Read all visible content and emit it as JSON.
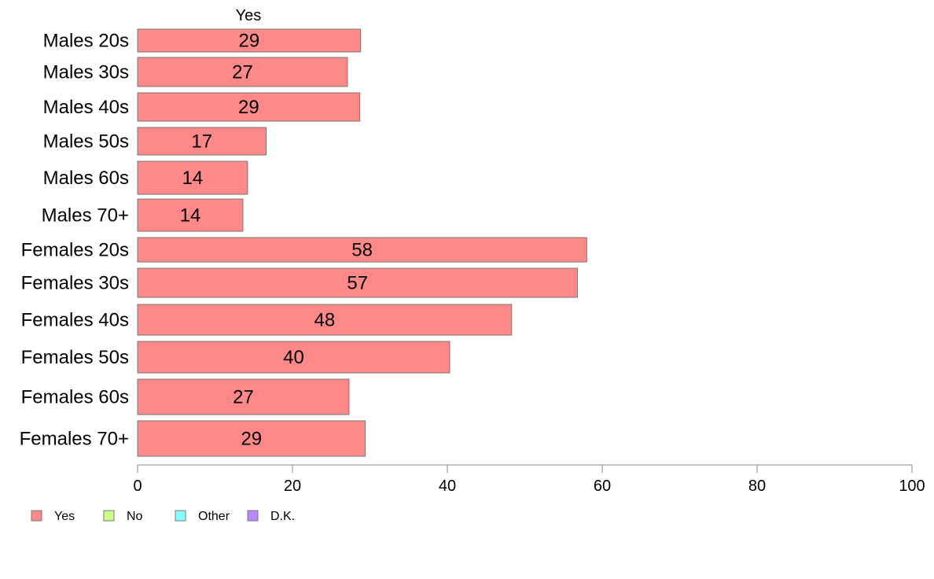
{
  "chart_data": {
    "type": "bar",
    "orientation": "horizontal",
    "column_header": "Yes",
    "categories": [
      "Males 20s",
      "Males 30s",
      "Males 40s",
      "Males 50s",
      "Males 60s",
      "Males 70+",
      "Females 20s",
      "Females 30s",
      "Females 40s",
      "Females 50s",
      "Females 60s",
      "Females 70+"
    ],
    "series": [
      {
        "name": "Yes",
        "color": "#ff8888",
        "values": [
          28.8,
          27.1,
          28.7,
          16.6,
          14.2,
          13.6,
          58.0,
          56.8,
          48.3,
          40.3,
          27.3,
          29.4
        ]
      }
    ],
    "value_labels": [
      "29",
      "27",
      "29",
      "17",
      "14",
      "14",
      "58",
      "57",
      "48",
      "40",
      "27",
      "29"
    ],
    "xlim": [
      0,
      100
    ],
    "xticks": [
      0,
      20,
      40,
      60,
      80,
      100
    ],
    "xtick_labels": [
      "0",
      "20",
      "40",
      "60",
      "80",
      "100"
    ],
    "grid": false,
    "legend": {
      "placement": "bottom-left",
      "items": [
        {
          "label": "Yes",
          "color": "#ff8888"
        },
        {
          "label": "No",
          "color": "#ccff88"
        },
        {
          "label": "Other",
          "color": "#88ffff"
        },
        {
          "label": "D.K.",
          "color": "#bb88ff"
        }
      ]
    }
  }
}
